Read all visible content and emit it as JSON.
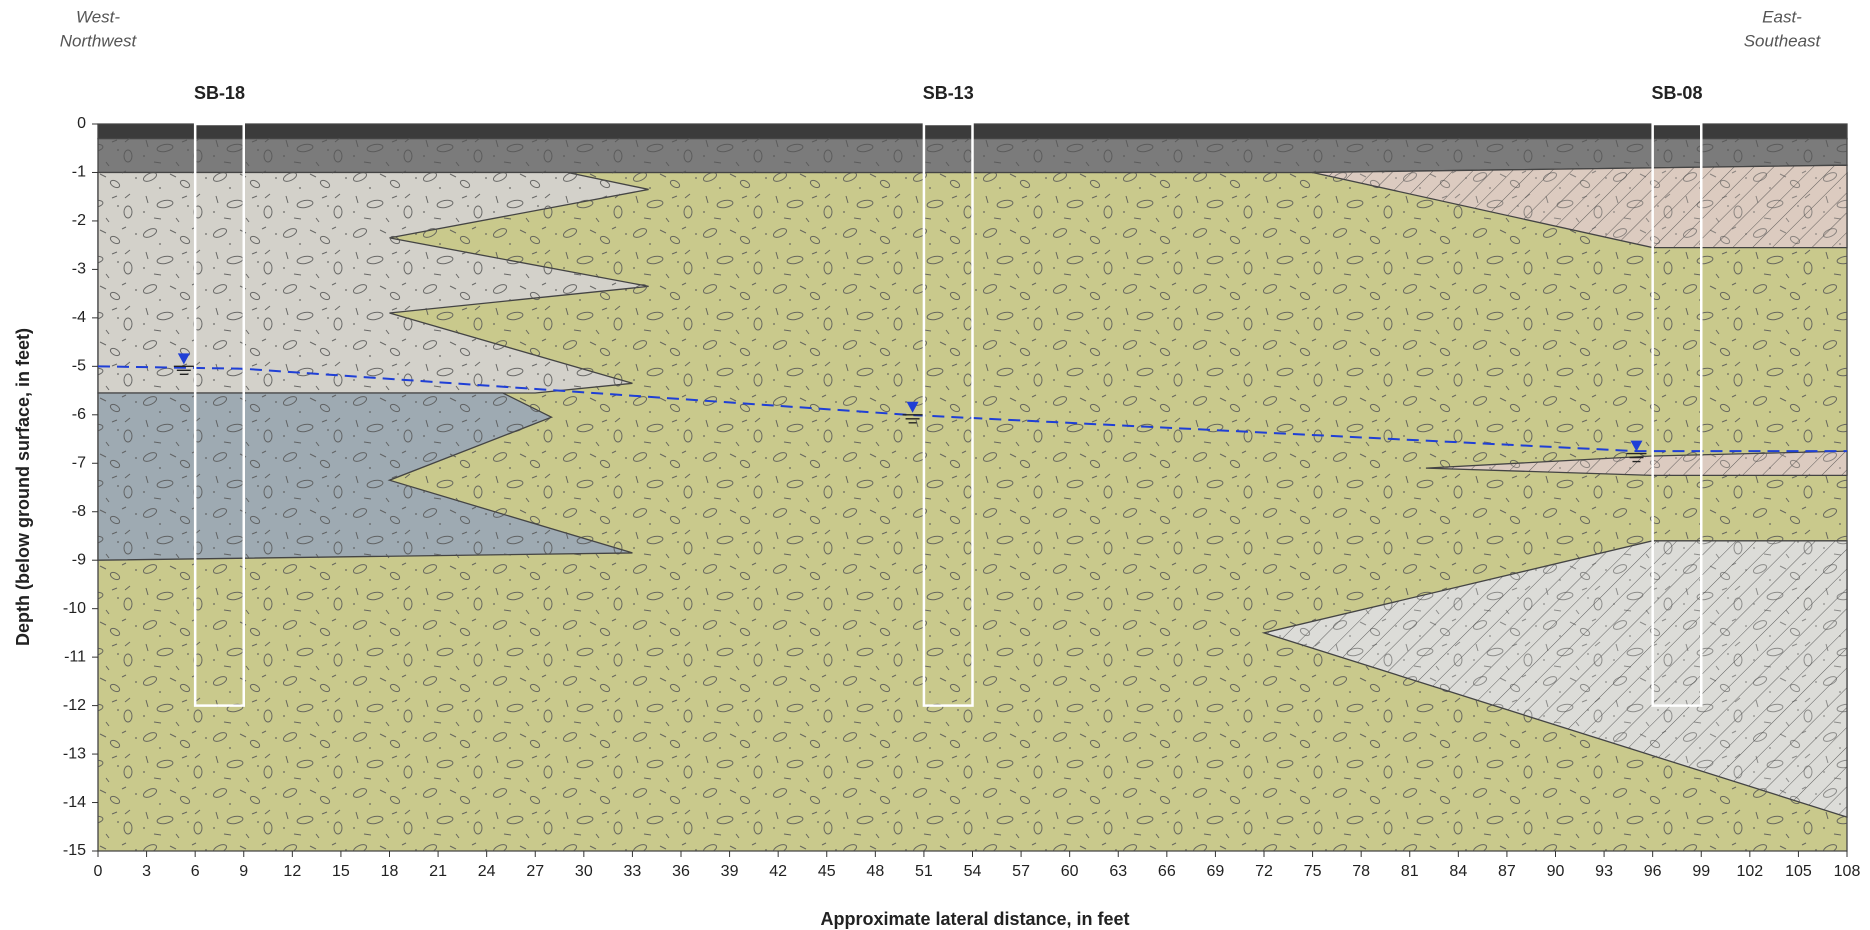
{
  "chart_data": {
    "type": "cross-section",
    "direction_left": [
      "West-",
      "Northwest"
    ],
    "direction_right": [
      "East-",
      "Southeast"
    ],
    "xlabel": "Approximate lateral distance, in feet",
    "ylabel": "Depth (below ground surface, in feet)",
    "xlim": [
      0,
      108
    ],
    "ylim": [
      -15,
      0
    ],
    "xticks": [
      0,
      3,
      6,
      9,
      12,
      15,
      18,
      21,
      24,
      27,
      30,
      33,
      36,
      39,
      42,
      45,
      48,
      51,
      54,
      57,
      60,
      63,
      66,
      69,
      72,
      75,
      78,
      81,
      84,
      87,
      90,
      93,
      96,
      99,
      102,
      105,
      108
    ],
    "yticks": [
      0,
      -1,
      -2,
      -3,
      -4,
      -5,
      -6,
      -7,
      -8,
      -9,
      -10,
      -11,
      -12,
      -13,
      -14,
      -15
    ],
    "layers": [
      {
        "color": "#c9c98c",
        "hatch": false,
        "x": [
          0,
          108,
          108,
          0
        ],
        "y": [
          -1,
          -1,
          -15,
          -15
        ]
      },
      {
        "color": "#3b3b3b",
        "hatch": false,
        "x": [
          0,
          108,
          108,
          0
        ],
        "y": [
          0,
          0,
          -0.3,
          -0.3
        ]
      },
      {
        "color": "#7b7b7b",
        "hatch": false,
        "x": [
          0,
          108,
          108,
          75,
          0
        ],
        "y": [
          -0.3,
          -0.3,
          -0.85,
          -1,
          -1
        ]
      },
      {
        "color": "#d3d1ca",
        "hatch": false,
        "x": [
          0,
          29,
          34,
          18,
          34,
          18,
          33,
          27,
          0
        ],
        "y": [
          -1,
          -1,
          -1.35,
          -2.35,
          -3.35,
          -3.9,
          -5.35,
          -5.55,
          -5.55
        ]
      },
      {
        "color": "#9eaab2",
        "hatch": false,
        "x": [
          0,
          25,
          28,
          18,
          33,
          0
        ],
        "y": [
          -5.55,
          -5.55,
          -6.05,
          -7.35,
          -8.85,
          -9
        ]
      },
      {
        "color": "#dccbc0",
        "hatch": true,
        "x": [
          75,
          108,
          108,
          96
        ],
        "y": [
          -1,
          -0.85,
          -2.55,
          -2.55
        ]
      },
      {
        "color": "#dccbc0",
        "hatch": true,
        "x": [
          82,
          96,
          108,
          108,
          96
        ],
        "y": [
          -7.1,
          -6.85,
          -6.75,
          -7.25,
          -7.25
        ]
      },
      {
        "color": "#dcdcd8",
        "hatch": true,
        "x": [
          72,
          96,
          108,
          108
        ],
        "y": [
          -10.5,
          -8.6,
          -8.6,
          -14.3
        ]
      }
    ],
    "borings": [
      {
        "name": "SB-18",
        "x": [
          6,
          9
        ],
        "bottom": -12
      },
      {
        "name": "SB-13",
        "x": [
          51,
          54
        ],
        "bottom": -12
      },
      {
        "name": "SB-08",
        "x": [
          96,
          99
        ],
        "bottom": -12
      }
    ],
    "water_table": {
      "color": "#1f3fd6",
      "x": [
        0,
        9,
        50,
        95,
        108
      ],
      "y": [
        -5,
        -5.05,
        -6,
        -6.75,
        -6.75
      ]
    },
    "water_levels": {
      "x": [
        5.3,
        50.3,
        95
      ],
      "y": [
        -5,
        -6,
        -6.8
      ]
    }
  }
}
